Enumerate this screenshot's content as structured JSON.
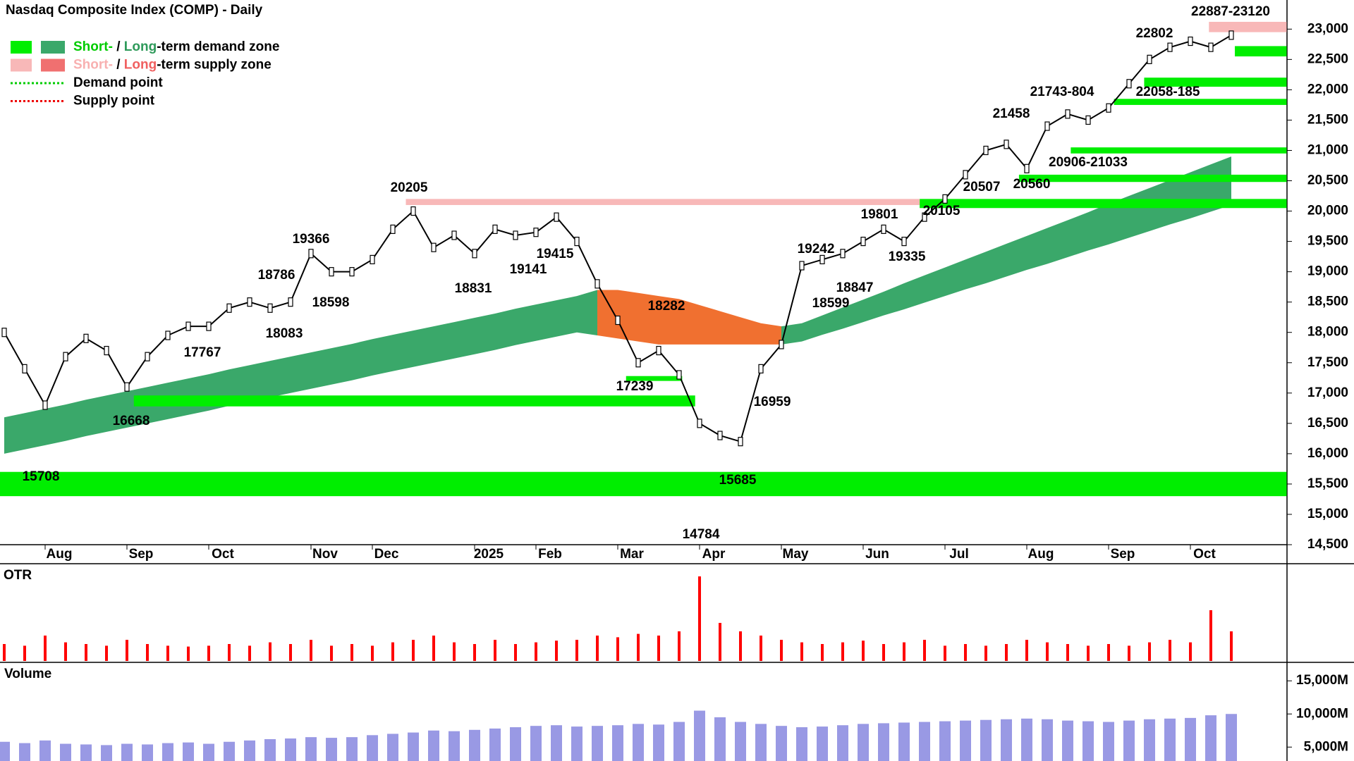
{
  "chart_data": [
    {
      "type": "line",
      "title": "Nasdaq Composite Index (COMP) - Daily",
      "categories": [
        null,
        null,
        "Aug",
        null,
        null,
        null,
        "Sep",
        null,
        null,
        null,
        "Oct",
        null,
        null,
        null,
        null,
        "Nov",
        null,
        null,
        "Dec",
        null,
        null,
        null,
        null,
        "2025",
        null,
        null,
        "Feb",
        null,
        null,
        null,
        "Mar",
        null,
        null,
        null,
        "Apr",
        null,
        null,
        null,
        "May",
        null,
        null,
        null,
        "Jun",
        null,
        null,
        null,
        "Jul",
        null,
        null,
        null,
        "Aug",
        null,
        null,
        null,
        "Sep",
        null,
        null,
        null,
        "Oct",
        null,
        null
      ],
      "values": [
        18000,
        17400,
        16800,
        17600,
        17900,
        17700,
        17100,
        17600,
        17950,
        18100,
        18100,
        18400,
        18500,
        18400,
        18500,
        19300,
        19000,
        19000,
        19200,
        19700,
        20000,
        19400,
        19600,
        19300,
        19700,
        19600,
        19650,
        19900,
        19500,
        18800,
        18200,
        17500,
        17700,
        17300,
        16500,
        16300,
        16200,
        17400,
        17800,
        19100,
        19200,
        19300,
        19500,
        19700,
        19500,
        19900,
        20200,
        20600,
        21000,
        21100,
        20700,
        21400,
        21600,
        21500,
        21700,
        22100,
        22500,
        22700,
        22800,
        22700,
        22900
      ],
      "color": "#000000",
      "ylim": [
        14500,
        23480
      ],
      "yticks": [
        {
          "value": 14500,
          "label": "14,500"
        },
        {
          "value": 15000,
          "label": "15,000"
        },
        {
          "value": 15500,
          "label": "15,500"
        },
        {
          "value": 16000,
          "label": "16,000"
        },
        {
          "value": 16500,
          "label": "16,500"
        },
        {
          "value": 17000,
          "label": "17,000"
        },
        {
          "value": 17500,
          "label": "17,500"
        },
        {
          "value": 18000,
          "label": "18,000"
        },
        {
          "value": 18500,
          "label": "18,500"
        },
        {
          "value": 19000,
          "label": "19,000"
        },
        {
          "value": 19500,
          "label": "19,500"
        },
        {
          "value": 20000,
          "label": "20,000"
        },
        {
          "value": 20500,
          "label": "20,500"
        },
        {
          "value": 21000,
          "label": "21,000"
        },
        {
          "value": 21500,
          "label": "21,500"
        },
        {
          "value": 22000,
          "label": "22,000"
        },
        {
          "value": 22500,
          "label": "22,500"
        },
        {
          "value": 23000,
          "label": "23,000"
        }
      ],
      "long_term_demand": {
        "low": [
          16000,
          16070,
          16140,
          16210,
          16290,
          16360,
          16430,
          16500,
          16570,
          16640,
          16710,
          16790,
          16860,
          16930,
          17000,
          17070,
          17140,
          17210,
          17290,
          17360,
          17430,
          17500,
          17570,
          17640,
          17710,
          17790,
          17860,
          17930,
          18000,
          17950,
          null,
          null,
          null,
          null,
          null,
          null,
          null,
          null,
          17800,
          17850,
          17960,
          18060,
          18170,
          18280,
          18380,
          18490,
          18600,
          18710,
          18810,
          18920,
          19030,
          19130,
          19240,
          19350,
          19450,
          19560,
          19670,
          19780,
          19880,
          19990,
          20100
        ],
        "high": [
          16600,
          16670,
          16740,
          16810,
          16890,
          16960,
          17030,
          17100,
          17170,
          17240,
          17310,
          17390,
          17460,
          17530,
          17600,
          17670,
          17740,
          17810,
          17890,
          17960,
          18030,
          18100,
          18170,
          18240,
          18310,
          18390,
          18460,
          18530,
          18600,
          18700,
          null,
          null,
          null,
          null,
          null,
          null,
          null,
          null,
          18100,
          18150,
          18280,
          18410,
          18540,
          18670,
          18810,
          18940,
          19070,
          19200,
          19330,
          19460,
          19590,
          19720,
          19850,
          19980,
          20120,
          20250,
          20380,
          20510,
          20640,
          20770,
          20900
        ]
      },
      "long_term_supply": {
        "low": [
          null,
          null,
          null,
          null,
          null,
          null,
          null,
          null,
          null,
          null,
          null,
          null,
          null,
          null,
          null,
          null,
          null,
          null,
          null,
          null,
          null,
          null,
          null,
          null,
          null,
          null,
          null,
          null,
          null,
          17950,
          17900,
          17850,
          17800,
          17800,
          17800,
          17800,
          17800,
          17800,
          17800,
          null,
          null,
          null,
          null,
          null,
          null,
          null,
          null,
          null,
          null,
          null,
          null,
          null,
          null,
          null,
          null,
          null,
          null,
          null,
          null,
          null,
          null
        ],
        "high": [
          null,
          null,
          null,
          null,
          null,
          null,
          null,
          null,
          null,
          null,
          null,
          null,
          null,
          null,
          null,
          null,
          null,
          null,
          null,
          null,
          null,
          null,
          null,
          null,
          null,
          null,
          null,
          null,
          null,
          18700,
          18700,
          18650,
          18600,
          18550,
          18450,
          18350,
          18250,
          18150,
          18100,
          null,
          null,
          null,
          null,
          null,
          null,
          null,
          null,
          null,
          null,
          null,
          null,
          null,
          null,
          null,
          null,
          null,
          null,
          null,
          null,
          null,
          null
        ]
      },
      "demand_zones": [
        [
          15300,
          15700
        ],
        [
          16780,
          16960
        ],
        [
          17200,
          17280
        ],
        [
          20050,
          20200
        ],
        [
          20480,
          20600
        ],
        [
          20950,
          21050
        ],
        [
          21750,
          21850
        ],
        [
          22050,
          22200
        ],
        [
          22550,
          22720
        ]
      ],
      "supply_zones": [
        [
          20100,
          20200
        ],
        [
          22950,
          23120
        ]
      ],
      "annotations": [
        "15708",
        "16668",
        "17767",
        "18083",
        "18598",
        "18786",
        "19366",
        "20205",
        "18831",
        "19141",
        "19415",
        "17239",
        "18282",
        "14784",
        "15685",
        "16959",
        "19242",
        "18599",
        "18847",
        "19801",
        "19335",
        "20105",
        "20507",
        "20560",
        "21458",
        "20906-21033",
        "21743-804",
        "22058-185",
        "22802",
        "22887-23120"
      ],
      "legend": [
        {
          "parts": [
            "Short-",
            " / ",
            "Long",
            "-term demand zone"
          ]
        },
        {
          "parts": [
            "Short-",
            " / ",
            "Long",
            "-term supply zone"
          ]
        },
        {
          "label": "Demand point"
        },
        {
          "label": "Supply point"
        }
      ]
    },
    {
      "type": "bar",
      "title": "OTR",
      "color": "#ff0000",
      "values": [
        20,
        18,
        30,
        22,
        20,
        18,
        25,
        20,
        18,
        17,
        18,
        20,
        18,
        22,
        20,
        25,
        18,
        20,
        18,
        22,
        25,
        30,
        22,
        20,
        25,
        20,
        22,
        24,
        25,
        30,
        28,
        32,
        30,
        35,
        100,
        45,
        35,
        30,
        25,
        22,
        20,
        22,
        24,
        20,
        22,
        25,
        18,
        20,
        18,
        20,
        25,
        22,
        20,
        18,
        20,
        18,
        22,
        25,
        22,
        60,
        35
      ]
    },
    {
      "type": "bar",
      "title": "Volume",
      "color": "#8080dd",
      "values": [
        5800,
        5600,
        6000,
        5500,
        5400,
        5300,
        5500,
        5400,
        5600,
        5700,
        5500,
        5800,
        6000,
        6200,
        6300,
        6500,
        6400,
        6500,
        6800,
        7000,
        7200,
        7500,
        7400,
        7600,
        7800,
        8000,
        8200,
        8300,
        8100,
        8200,
        8300,
        8500,
        8400,
        8800,
        10500,
        9500,
        8800,
        8500,
        8200,
        8000,
        8100,
        8300,
        8500,
        8600,
        8700,
        8800,
        8900,
        9000,
        9100,
        9200,
        9300,
        9200,
        9000,
        8900,
        8800,
        9000,
        9200,
        9300,
        9400,
        9800,
        10000
      ],
      "ylim": [
        2900,
        17470
      ],
      "yticks": [
        {
          "value": 5000,
          "label": "5,000M"
        },
        {
          "value": 10000,
          "label": "10,000M"
        },
        {
          "value": 15000,
          "label": "15,000M"
        }
      ]
    }
  ]
}
